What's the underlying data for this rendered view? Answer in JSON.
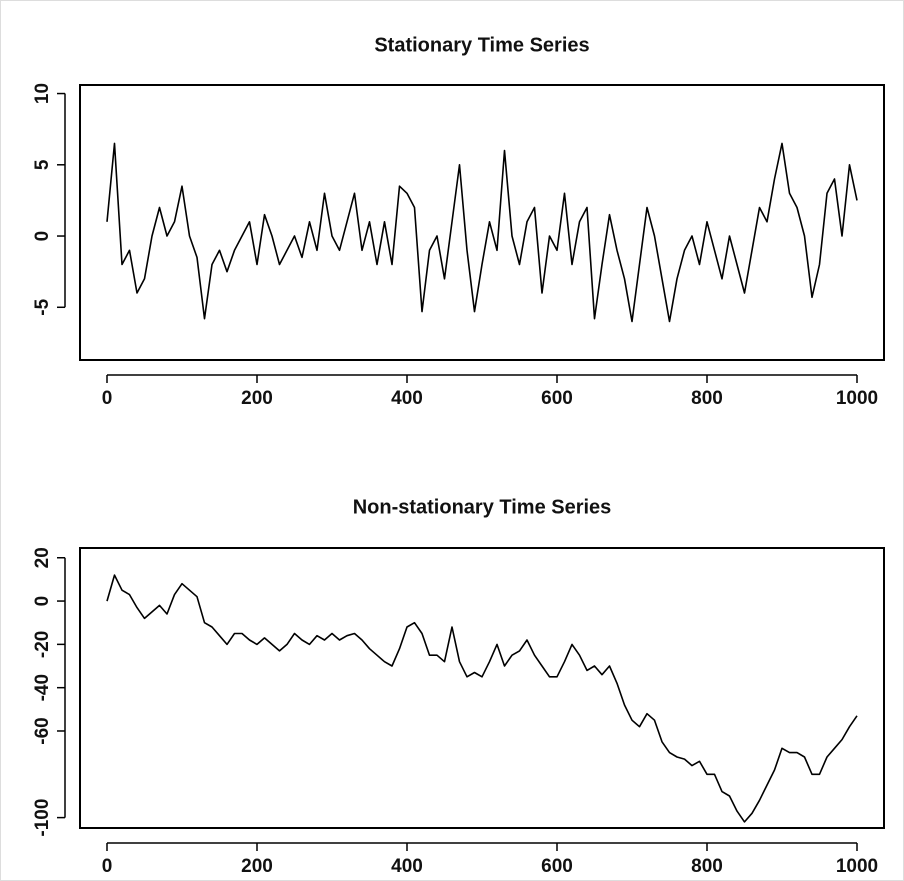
{
  "chart_data": [
    {
      "type": "line",
      "title": "Stationary Time Series",
      "color": "#000000",
      "x": [
        0,
        10,
        20,
        30,
        40,
        50,
        60,
        70,
        80,
        90,
        100,
        110,
        120,
        130,
        140,
        150,
        160,
        170,
        180,
        190,
        200,
        210,
        220,
        230,
        240,
        250,
        260,
        270,
        280,
        290,
        300,
        310,
        320,
        330,
        340,
        350,
        360,
        370,
        380,
        390,
        400,
        410,
        420,
        430,
        440,
        450,
        460,
        470,
        480,
        490,
        500,
        510,
        520,
        530,
        540,
        550,
        560,
        570,
        580,
        590,
        600,
        610,
        620,
        630,
        640,
        650,
        660,
        670,
        680,
        690,
        700,
        710,
        720,
        730,
        740,
        750,
        760,
        770,
        780,
        790,
        800,
        810,
        820,
        830,
        840,
        850,
        860,
        870,
        880,
        890,
        900,
        910,
        920,
        930,
        940,
        950,
        960,
        970,
        980,
        990,
        1000
      ],
      "values": [
        1,
        6.5,
        -2,
        -1,
        -4,
        -3,
        0,
        2,
        0,
        1,
        3.5,
        0,
        -1.5,
        -5.8,
        -2,
        -1,
        -2.5,
        -1,
        0,
        1,
        -2,
        1.5,
        0,
        -2,
        -1,
        0,
        -1.5,
        1,
        -1,
        3,
        0,
        -1,
        1,
        3,
        -1,
        1,
        -2,
        1,
        -2,
        3.5,
        3,
        2,
        -5.3,
        -1,
        0,
        -3,
        1,
        5,
        -1,
        -5.3,
        -2,
        1,
        -1,
        6,
        0,
        -2,
        1,
        2,
        -4,
        0,
        -1,
        3,
        -2,
        1,
        2,
        -5.8,
        -2,
        1.5,
        -1,
        -3,
        -6,
        -2,
        2,
        0,
        -3,
        -6,
        -3,
        -1,
        0,
        -2,
        1,
        -1,
        -3,
        0,
        -2,
        -4,
        -1,
        2,
        1,
        4,
        6.5,
        3,
        2,
        0,
        -4.3,
        -2,
        3,
        4,
        0,
        5,
        2.5
      ],
      "xlim": [
        -36,
        1036
      ],
      "ylim": [
        -8.7,
        10.6
      ],
      "xticks": [
        0,
        200,
        400,
        600,
        800,
        1000
      ],
      "yticks": [
        -5,
        0,
        5,
        10
      ]
    },
    {
      "type": "line",
      "title": "Non-stationary Time Series",
      "color": "#000000",
      "x": [
        0,
        10,
        20,
        30,
        40,
        50,
        60,
        70,
        80,
        90,
        100,
        110,
        120,
        130,
        140,
        150,
        160,
        170,
        180,
        190,
        200,
        210,
        220,
        230,
        240,
        250,
        260,
        270,
        280,
        290,
        300,
        310,
        320,
        330,
        340,
        350,
        360,
        370,
        380,
        390,
        400,
        410,
        420,
        430,
        440,
        450,
        460,
        470,
        480,
        490,
        500,
        510,
        520,
        530,
        540,
        550,
        560,
        570,
        580,
        590,
        600,
        610,
        620,
        630,
        640,
        650,
        660,
        670,
        680,
        690,
        700,
        710,
        720,
        730,
        740,
        750,
        760,
        770,
        780,
        790,
        800,
        810,
        820,
        830,
        840,
        850,
        860,
        870,
        880,
        890,
        900,
        910,
        920,
        930,
        940,
        950,
        960,
        970,
        980,
        990,
        1000
      ],
      "values": [
        0,
        12,
        5,
        3,
        -3,
        -8,
        -5,
        -2,
        -6,
        3,
        8,
        5,
        2,
        -10,
        -12,
        -16,
        -20,
        -15,
        -15,
        -18,
        -20,
        -17,
        -20,
        -23,
        -20,
        -15,
        -18,
        -20,
        -16,
        -18,
        -15,
        -18,
        -16,
        -15,
        -18,
        -22,
        -25,
        -28,
        -30,
        -22,
        -12,
        -10,
        -15,
        -25,
        -25,
        -28,
        -12,
        -28,
        -35,
        -33,
        -35,
        -28,
        -20,
        -30,
        -25,
        -23,
        -18,
        -25,
        -30,
        -35,
        -35,
        -28,
        -20,
        -25,
        -32,
        -30,
        -34,
        -30,
        -38,
        -48,
        -55,
        -58,
        -52,
        -55,
        -65,
        -70,
        -72,
        -73,
        -76,
        -74,
        -80,
        -80,
        -88,
        -90,
        -97,
        -102,
        -98,
        -92,
        -85,
        -78,
        -68,
        -70,
        -70,
        -72,
        -80,
        -80,
        -72,
        -68,
        -64,
        -58,
        -53
      ],
      "xlim": [
        -36,
        1036
      ],
      "ylim": [
        -104.8,
        24.5
      ],
      "xticks": [
        0,
        200,
        400,
        600,
        800,
        1000
      ],
      "yticks": [
        -100,
        -60,
        -40,
        -20,
        0,
        20
      ]
    }
  ]
}
